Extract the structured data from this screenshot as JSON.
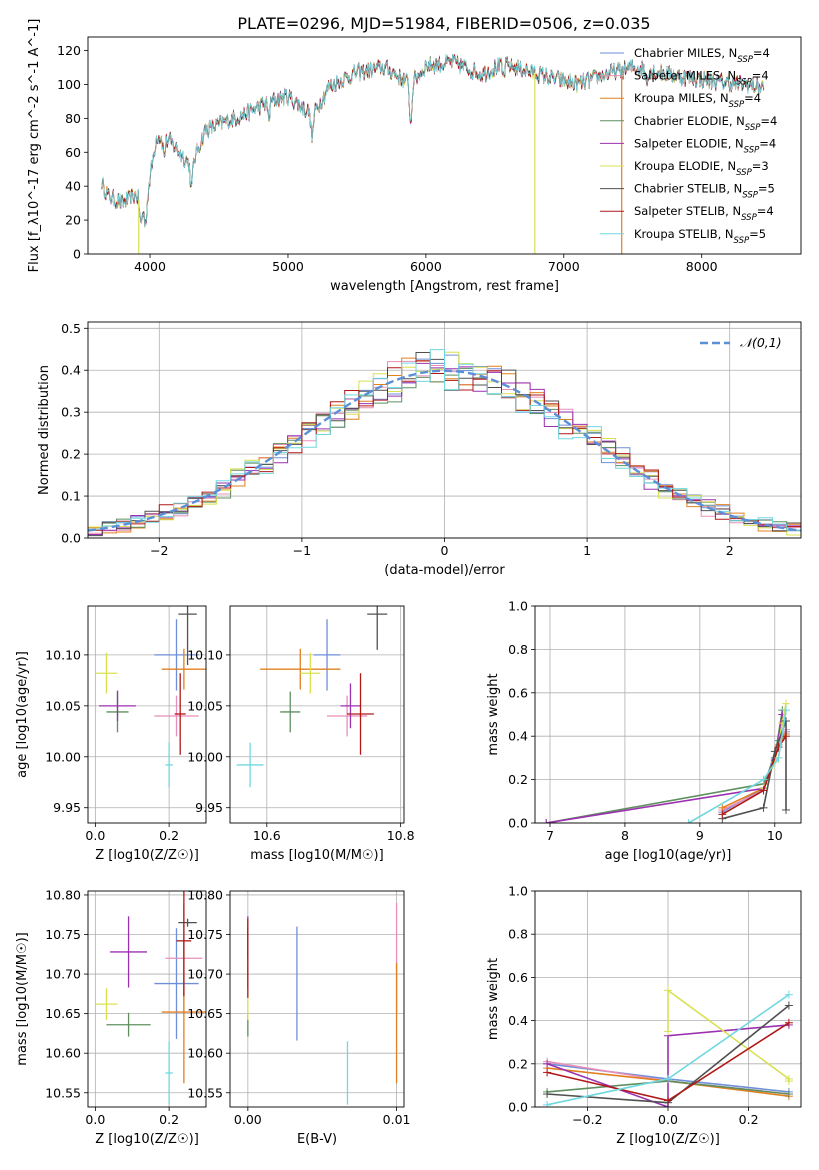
{
  "figure": {
    "title": "PLATE=0296, MJD=51984, FIBERID=0506, z=0.035"
  },
  "colors": {
    "Chabrier MILES": "#6f8fd8",
    "Salpeter MILES": "#e88fb8",
    "Kroupa MILES": "#e08020",
    "Chabrier ELODIE": "#5f8f5f",
    "Salpeter ELODIE": "#9b30b0",
    "Kroupa ELODIE": "#d8e050",
    "Chabrier STELIB": "#505050",
    "Salpeter STELIB": "#b01818",
    "Kroupa STELIB": "#70d8e0",
    "gauss": "#5b8fd8"
  },
  "chart_data": [
    {
      "id": "spectrum",
      "type": "line",
      "title": "PLATE=0296, MJD=51984, FIBERID=0506, z=0.035",
      "xlabel": "wavelength [Angstrom, rest frame]",
      "ylabel": "Flux [f_λ10^-17 erg cm^-2 s^-1 A^-1]",
      "xlim": [
        3550,
        8720
      ],
      "ylim": [
        0,
        128
      ],
      "xticks": [
        4000,
        5000,
        6000,
        7000,
        8000
      ],
      "yticks": [
        0,
        20,
        40,
        60,
        80,
        100,
        120
      ],
      "grid": false,
      "legend": "upper-right",
      "continuum": {
        "x": [
          3650,
          3700,
          3800,
          3900,
          3960,
          4050,
          4150,
          4300,
          4400,
          4550,
          4700,
          4860,
          5000,
          5180,
          5300,
          5500,
          5700,
          5890,
          6000,
          6200,
          6400,
          6563,
          6700,
          6900,
          7100,
          7300,
          7500,
          7700,
          7900,
          8100,
          8300,
          8500
        ],
        "y": [
          42,
          34,
          30,
          35,
          25,
          70,
          66,
          52,
          73,
          78,
          83,
          90,
          93,
          82,
          99,
          107,
          110,
          100,
          111,
          113,
          106,
          112,
          109,
          104,
          100,
          106,
          110,
          107,
          104,
          102,
          100,
          98
        ]
      },
      "glitches": [
        {
          "series": "Kroupa ELODIE",
          "x": 3918,
          "ymin": 0
        },
        {
          "series": "Kroupa ELODIE",
          "x": 6790,
          "ymin": 0
        },
        {
          "series": "Kroupa MILES",
          "x": 7420,
          "ymin": 0
        }
      ],
      "series": [
        {
          "name": "Chabrier MILES",
          "legend": "Chabrier MILES, N",
          "nssp": "4"
        },
        {
          "name": "Salpeter MILES",
          "legend": "Salpeter MILES, N",
          "nssp": "4"
        },
        {
          "name": "Kroupa MILES",
          "legend": "Kroupa MILES, N",
          "nssp": "4"
        },
        {
          "name": "Chabrier ELODIE",
          "legend": "Chabrier ELODIE, N",
          "nssp": "4"
        },
        {
          "name": "Salpeter ELODIE",
          "legend": "Salpeter ELODIE, N",
          "nssp": "4"
        },
        {
          "name": "Kroupa ELODIE",
          "legend": "Kroupa ELODIE, N",
          "nssp": "3"
        },
        {
          "name": "Chabrier STELIB",
          "legend": "Chabrier STELIB, N",
          "nssp": "5"
        },
        {
          "name": "Salpeter STELIB",
          "legend": "Salpeter STELIB, N",
          "nssp": "4"
        },
        {
          "name": "Kroupa STELIB",
          "legend": "Kroupa STELIB, N",
          "nssp": "5"
        }
      ]
    },
    {
      "id": "residuals",
      "type": "histogram",
      "xlabel": "(data-model)/error",
      "ylabel": "Normed distribution",
      "xlim": [
        -2.5,
        2.5
      ],
      "ylim": [
        0,
        0.515
      ],
      "xticks": [
        -2,
        -1,
        0,
        1,
        2
      ],
      "yticks": [
        0.0,
        0.1,
        0.2,
        0.3,
        0.4,
        0.5
      ],
      "grid": true,
      "legend": "upper-right",
      "gauss_label": "𝒩(0,1)",
      "bin_width": 0.1,
      "bin_start": -2.5
    },
    {
      "id": "age-vs-Z",
      "type": "errorbar",
      "xlabel": "Z [log10(Z/Z☉)]",
      "ylabel": "age [log10(age/yr)]",
      "xlim": [
        -0.02,
        0.3
      ],
      "ylim": [
        9.935,
        10.148
      ],
      "xticks": [
        0.0,
        0.2
      ],
      "yticks": [
        9.95,
        10.0,
        10.05,
        10.1
      ],
      "grid": true,
      "points": [
        {
          "series": "Chabrier MILES",
          "x": 0.22,
          "xerr": 0.06,
          "y": 10.1,
          "yerr": 0.035
        },
        {
          "series": "Salpeter MILES",
          "x": 0.22,
          "xerr": 0.06,
          "y": 10.04,
          "yerr": 0.02
        },
        {
          "series": "Kroupa MILES",
          "x": 0.24,
          "xerr": 0.06,
          "y": 10.086,
          "yerr": 0.02
        },
        {
          "series": "Chabrier ELODIE",
          "x": 0.06,
          "xerr": 0.03,
          "y": 10.044,
          "yerr": 0.02
        },
        {
          "series": "Salpeter ELODIE",
          "x": 0.06,
          "xerr": 0.05,
          "y": 10.05,
          "yerr": 0.015
        },
        {
          "series": "Kroupa ELODIE",
          "x": 0.03,
          "xerr": 0.03,
          "y": 10.082,
          "yerr": 0.02
        },
        {
          "series": "Chabrier STELIB",
          "x": 0.25,
          "xerr": 0.025,
          "y": 10.14,
          "yerr": 0.05
        },
        {
          "series": "Salpeter STELIB",
          "x": 0.23,
          "xerr": 0.015,
          "y": 10.042,
          "yerr": 0.04
        },
        {
          "series": "Kroupa STELIB",
          "x": 0.2,
          "xerr": 0.01,
          "y": 9.992,
          "yerr": 0.022
        }
      ]
    },
    {
      "id": "age-vs-mass",
      "type": "errorbar",
      "xlabel": "mass [log10(M/M☉)]",
      "ylabel": "",
      "xlim": [
        10.545,
        10.805
      ],
      "ylim": [
        9.935,
        10.148
      ],
      "xticks": [
        10.6,
        10.8
      ],
      "yticks": [
        9.95,
        10.0,
        10.05,
        10.1
      ],
      "grid": true,
      "points": [
        {
          "series": "Chabrier MILES",
          "x": 10.69,
          "xerr": 0.02,
          "y": 10.1,
          "yerr": 0.035
        },
        {
          "series": "Salpeter MILES",
          "x": 10.72,
          "xerr": 0.03,
          "y": 10.04,
          "yerr": 0.02
        },
        {
          "series": "Kroupa MILES",
          "x": 10.65,
          "xerr": 0.06,
          "y": 10.086,
          "yerr": 0.02
        },
        {
          "series": "Chabrier ELODIE",
          "x": 10.635,
          "xerr": 0.015,
          "y": 10.044,
          "yerr": 0.02
        },
        {
          "series": "Salpeter ELODIE",
          "x": 10.725,
          "xerr": 0.015,
          "y": 10.05,
          "yerr": 0.022
        },
        {
          "series": "Kroupa ELODIE",
          "x": 10.665,
          "xerr": 0.015,
          "y": 10.082,
          "yerr": 0.02
        },
        {
          "series": "Chabrier STELIB",
          "x": 10.765,
          "xerr": 0.015,
          "y": 10.14,
          "yerr": 0.035
        },
        {
          "series": "Salpeter STELIB",
          "x": 10.74,
          "xerr": 0.02,
          "y": 10.042,
          "yerr": 0.04
        },
        {
          "series": "Kroupa STELIB",
          "x": 10.575,
          "xerr": 0.02,
          "y": 9.992,
          "yerr": 0.022
        }
      ]
    },
    {
      "id": "massweight-vs-age",
      "type": "line",
      "xlabel": "age [log10(age/yr)]",
      "ylabel": "mass weight",
      "xlim": [
        6.8,
        10.35
      ],
      "ylim": [
        0,
        1
      ],
      "xticks": [
        7,
        8,
        9,
        10
      ],
      "yticks": [
        0.0,
        0.2,
        0.4,
        0.6,
        0.8,
        1.0
      ],
      "grid": true,
      "series": [
        {
          "name": "Chabrier MILES",
          "x": [
            9.3,
            9.85,
            10.05,
            10.15
          ],
          "y": [
            0.05,
            0.16,
            0.38,
            0.42
          ]
        },
        {
          "name": "Salpeter MILES",
          "x": [
            9.3,
            9.85,
            10.05,
            10.15
          ],
          "y": [
            0.06,
            0.15,
            0.36,
            0.43
          ]
        },
        {
          "name": "Kroupa MILES",
          "x": [
            9.3,
            9.85,
            10.05,
            10.15
          ],
          "y": [
            0.07,
            0.16,
            0.36,
            0.41
          ]
        },
        {
          "name": "Chabrier ELODIE",
          "x": [
            6.95,
            9.85,
            10.0,
            10.1
          ],
          "y": [
            0.0,
            0.18,
            0.3,
            0.52
          ]
        },
        {
          "name": "Salpeter ELODIE",
          "x": [
            6.95,
            9.85,
            10.0,
            10.1
          ],
          "y": [
            0.0,
            0.16,
            0.29,
            0.5
          ]
        },
        {
          "name": "Kroupa ELODIE",
          "x": [
            9.85,
            10.0,
            10.1,
            10.15
          ],
          "y": [
            0.16,
            0.28,
            0.46,
            0.55
          ]
        },
        {
          "name": "Chabrier STELIB",
          "x": [
            9.3,
            9.85,
            10.0,
            10.15,
            10.15
          ],
          "y": [
            0.02,
            0.07,
            0.33,
            0.47,
            0.06
          ]
        },
        {
          "name": "Salpeter STELIB",
          "x": [
            9.3,
            9.85,
            10.05,
            10.15
          ],
          "y": [
            0.04,
            0.15,
            0.35,
            0.4
          ]
        },
        {
          "name": "Kroupa STELIB",
          "x": [
            8.85,
            9.85,
            10.05,
            10.15
          ],
          "y": [
            0.0,
            0.2,
            0.3,
            0.52
          ]
        }
      ]
    },
    {
      "id": "mass-vs-Z",
      "type": "errorbar",
      "xlabel": "Z [log10(Z/Z☉)]",
      "ylabel": "mass [log10(M/M☉)]",
      "xlim": [
        -0.02,
        0.3
      ],
      "ylim": [
        10.532,
        10.805
      ],
      "xticks": [
        0.0,
        0.2
      ],
      "yticks": [
        10.55,
        10.6,
        10.65,
        10.7,
        10.75,
        10.8
      ],
      "grid": true,
      "points": [
        {
          "series": "Chabrier MILES",
          "x": 0.22,
          "xerr": 0.06,
          "y": 10.688,
          "yerr": 0.07
        },
        {
          "series": "Salpeter MILES",
          "x": 0.24,
          "xerr": 0.05,
          "y": 10.72,
          "yerr": 0.07
        },
        {
          "series": "Kroupa MILES",
          "x": 0.24,
          "xerr": 0.06,
          "y": 10.652,
          "yerr": 0.09
        },
        {
          "series": "Chabrier ELODIE",
          "x": 0.09,
          "xerr": 0.06,
          "y": 10.636,
          "yerr": 0.015
        },
        {
          "series": "Salpeter ELODIE",
          "x": 0.09,
          "xerr": 0.05,
          "y": 10.728,
          "yerr": 0.045
        },
        {
          "series": "Kroupa ELODIE",
          "x": 0.03,
          "xerr": 0.03,
          "y": 10.662,
          "yerr": 0.02
        },
        {
          "series": "Chabrier STELIB",
          "x": 0.25,
          "xerr": 0.025,
          "y": 10.765,
          "yerr": 0.005
        },
        {
          "series": "Salpeter STELIB",
          "x": 0.24,
          "xerr": 0.02,
          "y": 10.742,
          "yerr": 0.07
        },
        {
          "series": "Kroupa STELIB",
          "x": 0.2,
          "xerr": 0.01,
          "y": 10.575,
          "yerr": 0.04
        }
      ]
    },
    {
      "id": "mass-vs-ebv",
      "type": "errorbar",
      "xlabel": "E(B-V)",
      "ylabel": "",
      "xlim": [
        -0.0012,
        0.0105
      ],
      "ylim": [
        10.532,
        10.805
      ],
      "xticks": [
        0.0,
        0.01
      ],
      "yticks": [
        10.55,
        10.6,
        10.65,
        10.7,
        10.75,
        10.8
      ],
      "grid": true,
      "points": [
        {
          "series": "Chabrier MILES",
          "x": 0.0033,
          "xerr": 0,
          "y": 10.688,
          "yerr": 0.072
        },
        {
          "series": "Salpeter MILES",
          "x": 0.01,
          "xerr": 0,
          "y": 10.72,
          "yerr": 0.07
        },
        {
          "series": "Kroupa MILES",
          "x": 0.01,
          "xerr": 0,
          "y": 10.638,
          "yerr": 0.076
        },
        {
          "series": "Chabrier ELODIE",
          "x": 0.0,
          "xerr": 0,
          "y": 10.636,
          "yerr": 0.015
        },
        {
          "series": "Salpeter ELODIE",
          "x": 0.0,
          "xerr": 0,
          "y": 10.728,
          "yerr": 0.045
        },
        {
          "series": "Kroupa ELODIE",
          "x": 0.0,
          "xerr": 0,
          "y": 10.662,
          "yerr": 0.02
        },
        {
          "series": "Chabrier STELIB",
          "x": 0.0,
          "xerr": 0,
          "y": 10.74,
          "yerr": 0.02
        },
        {
          "series": "Salpeter STELIB",
          "x": 0.0,
          "xerr": 0,
          "y": 10.72,
          "yerr": 0.05
        },
        {
          "series": "Kroupa STELIB",
          "x": 0.0067,
          "xerr": 0,
          "y": 10.575,
          "yerr": 0.04
        }
      ]
    },
    {
      "id": "massweight-vs-Z",
      "type": "line",
      "xlabel": "Z [log10(Z/Z☉)]",
      "ylabel": "mass weight",
      "xlim": [
        -0.33,
        0.33
      ],
      "ylim": [
        0,
        1
      ],
      "xticks": [
        -0.2,
        0.0,
        0.2
      ],
      "yticks": [
        0.0,
        0.2,
        0.4,
        0.6,
        0.8,
        1.0
      ],
      "grid": true,
      "series": [
        {
          "name": "Chabrier MILES",
          "x": [
            -0.3,
            0.0,
            0.3
          ],
          "y": [
            0.2,
            0.13,
            0.07
          ]
        },
        {
          "name": "Salpeter MILES",
          "x": [
            -0.3,
            0.0,
            0.3
          ],
          "y": [
            0.21,
            0.12,
            0.06
          ]
        },
        {
          "name": "Kroupa MILES",
          "x": [
            -0.3,
            0.0,
            0.3
          ],
          "y": [
            0.18,
            0.12,
            0.05
          ]
        },
        {
          "name": "Chabrier ELODIE",
          "x": [
            -0.3,
            0.0,
            0.3
          ],
          "y": [
            0.07,
            0.12,
            0.06
          ]
        },
        {
          "name": "Salpeter ELODIE",
          "x": [
            -0.3,
            0.0,
            0.0,
            0.3
          ],
          "y": [
            0.2,
            0.0,
            0.33,
            0.38
          ]
        },
        {
          "name": "Kroupa ELODIE",
          "x": [
            0.0,
            0.0,
            0.3,
            0.3
          ],
          "y": [
            0.35,
            0.54,
            0.13,
            0.12
          ]
        },
        {
          "name": "Chabrier STELIB",
          "x": [
            -0.3,
            0.0,
            0.3
          ],
          "y": [
            0.06,
            0.02,
            0.47
          ]
        },
        {
          "name": "Salpeter STELIB",
          "x": [
            -0.3,
            0.0,
            0.3
          ],
          "y": [
            0.16,
            0.03,
            0.39
          ]
        },
        {
          "name": "Kroupa STELIB",
          "x": [
            -0.3,
            0.0,
            0.3
          ],
          "y": [
            0.01,
            0.13,
            0.52
          ]
        }
      ]
    }
  ]
}
